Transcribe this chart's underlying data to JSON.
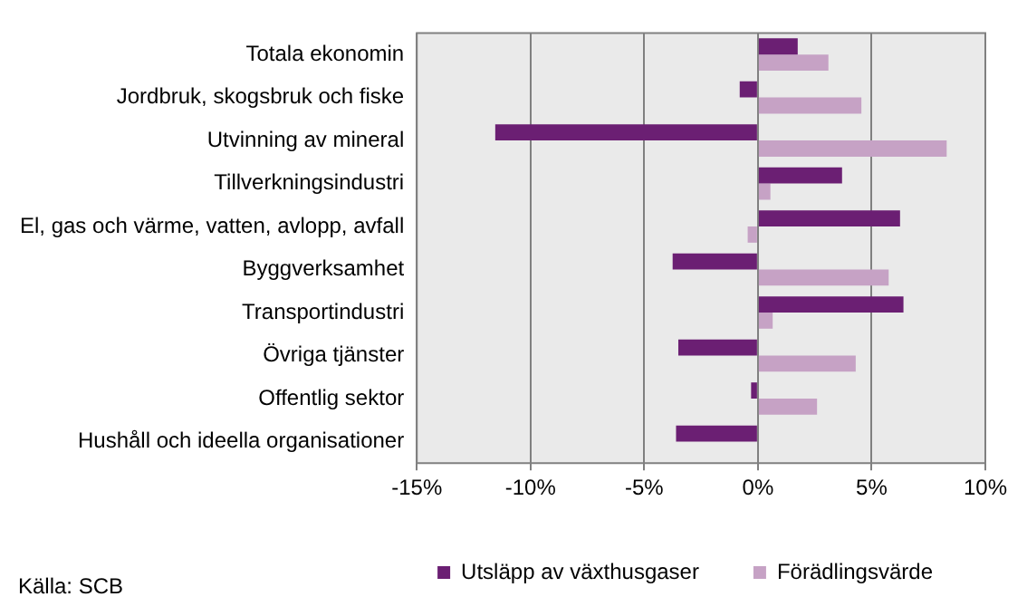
{
  "chart_data": {
    "type": "bar",
    "orientation": "horizontal",
    "categories": [
      "Totala ekonomin",
      "Jordbruk, skogsbruk och fiske",
      "Utvinning av mineral",
      "Tillverkningsindustri",
      "El, gas och värme, vatten, avlopp, avfall",
      "Byggverksamhet",
      "Transportindustri",
      "Övriga tjänster",
      "Offentlig sektor",
      "Hushåll och ideella organisationer"
    ],
    "series": [
      {
        "name": "Utsläpp av växthusgaser",
        "color": "#6b1f73",
        "values": [
          1.75,
          -0.8,
          -11.55,
          3.7,
          6.25,
          -3.75,
          6.4,
          -3.5,
          -0.3,
          -3.6
        ]
      },
      {
        "name": "Förädlingsvärde",
        "color": "#c6a2c5",
        "values": [
          3.1,
          4.55,
          8.3,
          0.55,
          -0.45,
          5.75,
          0.65,
          4.3,
          2.6,
          null
        ]
      }
    ],
    "xlim": [
      -15,
      10
    ],
    "xticks": [
      {
        "value": -15,
        "label": "-15%"
      },
      {
        "value": -10,
        "label": "-10%"
      },
      {
        "value": -5,
        "label": "-5%"
      },
      {
        "value": 0,
        "label": "0%"
      },
      {
        "value": 5,
        "label": "5%"
      },
      {
        "value": 10,
        "label": "10%"
      }
    ],
    "grid": "x",
    "legend": "bottom",
    "annotations": [
      "Källa: SCB"
    ]
  }
}
